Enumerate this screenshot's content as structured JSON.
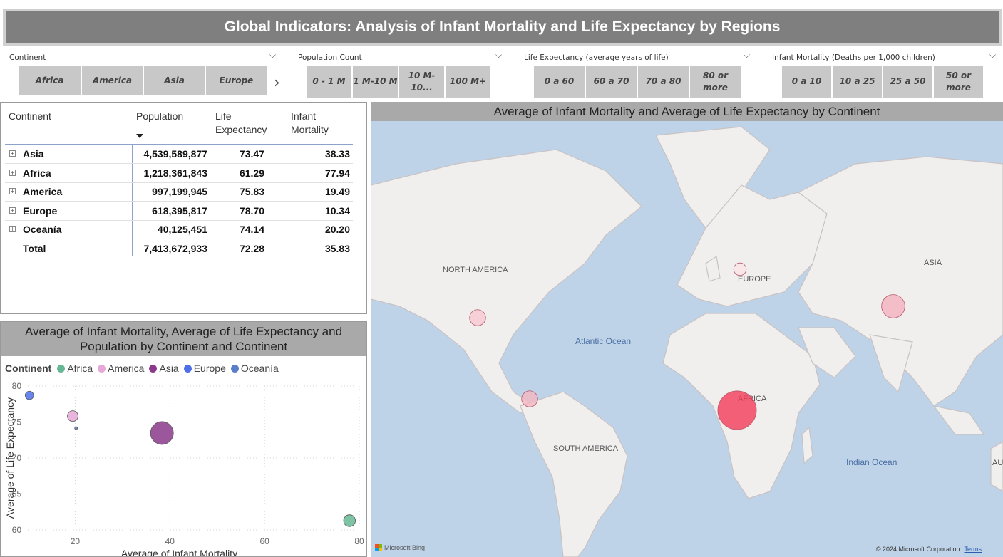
{
  "header": {
    "title": "Global Indicators: Analysis of Infant Mortality and Life Expectancy by Regions"
  },
  "slicers": {
    "continent": {
      "label": "Continent",
      "options": [
        "Africa",
        "America",
        "Asia",
        "Europe"
      ]
    },
    "population": {
      "label": "Population Count",
      "options": [
        "0 - 1 M",
        "1 M-10 M",
        "10 M-10...",
        "100 M+"
      ]
    },
    "life_expectancy": {
      "label": "Life Expectancy (average years of life)",
      "options": [
        "0 a 60",
        "60 a 70",
        "70 a 80",
        "80 or more"
      ]
    },
    "infant_mortality": {
      "label": "Infant Mortality (Deaths per 1,000 children)",
      "options": [
        "0 a 10",
        "10 a 25",
        "25 a 50",
        "50 or more"
      ]
    }
  },
  "table": {
    "headers": {
      "continent": "Continent",
      "population": "Population",
      "life": "Life Expectancy",
      "infant": "Infant Mortality"
    },
    "rows": [
      {
        "continent": "Asia",
        "population": "4,539,589,877",
        "life": "73.47",
        "infant": "38.33"
      },
      {
        "continent": "Africa",
        "population": "1,218,361,843",
        "life": "61.29",
        "infant": "77.94"
      },
      {
        "continent": "America",
        "population": "997,199,945",
        "life": "75.83",
        "infant": "19.49"
      },
      {
        "continent": "Europe",
        "population": "618,395,817",
        "life": "78.70",
        "infant": "10.34"
      },
      {
        "continent": "Oceanía",
        "population": "40,125,451",
        "life": "74.14",
        "infant": "20.20"
      }
    ],
    "total": {
      "continent": "Total",
      "population": "7,413,672,933",
      "life": "72.28",
      "infant": "35.83"
    }
  },
  "chart_data": [
    {
      "type": "scatter",
      "title": "Average of Infant Mortality, Average of Life Expectancy and Population by Continent and Continent",
      "xlabel": "Average of Infant Mortality",
      "ylabel": "Average of Life Expectancy",
      "legend_title": "Continent",
      "legend_placement": "top-left",
      "xlim": [
        10,
        80
      ],
      "ylim": [
        60,
        80
      ],
      "x_ticks": [
        20,
        40,
        60,
        80
      ],
      "y_ticks": [
        60,
        65,
        70,
        75,
        80
      ],
      "grid": true,
      "series": [
        {
          "name": "Africa",
          "color": "#66b894",
          "x": 77.94,
          "y": 61.29,
          "population": 1218361843
        },
        {
          "name": "America",
          "color": "#e6a8d7",
          "x": 19.49,
          "y": 75.83,
          "population": 997199945
        },
        {
          "name": "Asia",
          "color": "#8b3a8b",
          "x": 38.33,
          "y": 73.47,
          "population": 4539589877
        },
        {
          "name": "Europe",
          "color": "#4f6fe8",
          "x": 10.34,
          "y": 78.7,
          "population": 618395817
        },
        {
          "name": "Oceanía",
          "color": "#5b7ec9",
          "x": 20.2,
          "y": 74.14,
          "population": 40125451
        }
      ]
    },
    {
      "type": "map",
      "title": "Average of Infant Mortality and Average of Life Expectancy by Continent",
      "labels": {
        "north_america": "NORTH AMERICA",
        "europe": "EUROPE",
        "asia": "ASIA",
        "africa": "AFRICA",
        "south_america": "SOUTH AMERICA",
        "atlantic": "Atlantic Ocean",
        "indian": "Indian Ocean",
        "australia": "AU"
      },
      "bubbles": [
        {
          "name": "North America",
          "infant": 19.49,
          "color": "#f8c8d0"
        },
        {
          "name": "South America",
          "infant": 19.49,
          "color": "#f4b6c2"
        },
        {
          "name": "Africa",
          "infant": 77.94,
          "color": "#f43b57"
        },
        {
          "name": "Asia",
          "infant": 38.33,
          "color": "#f5b2be"
        },
        {
          "name": "Europe",
          "infant": 10.34,
          "color": "#fbe3e7"
        }
      ]
    }
  ],
  "map_footer": {
    "bing": "Microsoft Bing",
    "copyright": "© 2024 Microsoft Corporation",
    "terms": "Terms"
  }
}
